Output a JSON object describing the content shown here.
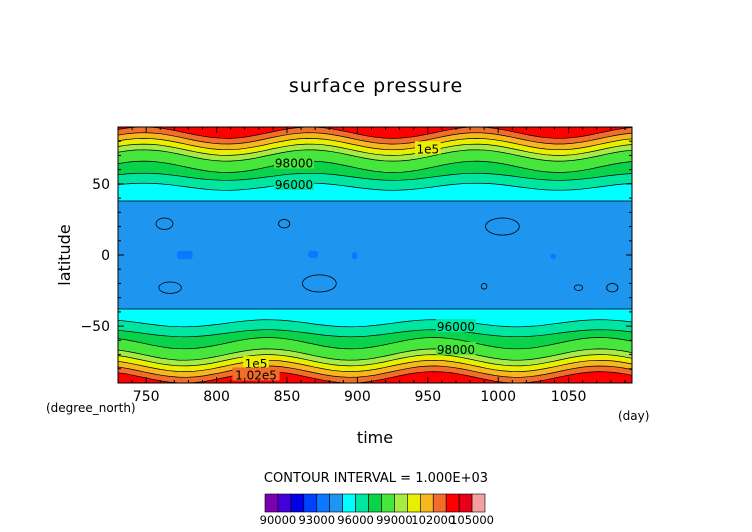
{
  "chart_data": {
    "type": "heatmap",
    "title": "surface pressure",
    "xlabel": "time",
    "ylabel": "latitude",
    "x_unit": "(day)",
    "y_unit": "(degree_north)",
    "xlim": [
      730,
      1095
    ],
    "ylim": [
      -90,
      90
    ],
    "x_ticks": [
      750,
      800,
      850,
      900,
      950,
      1000,
      1050
    ],
    "y_ticks": [
      -50,
      0,
      50
    ],
    "contour_interval_text": "CONTOUR INTERVAL = 1.000E+03",
    "contour_labels": [
      {
        "text": "1e5",
        "x": 950,
        "lat": 75
      },
      {
        "text": "98000",
        "x": 855,
        "lat": 65
      },
      {
        "text": "96000",
        "x": 855,
        "lat": 50
      },
      {
        "text": "96000",
        "x": 970,
        "lat": -50
      },
      {
        "text": "98000",
        "x": 970,
        "lat": -66
      },
      {
        "text": "1e5",
        "x": 828,
        "lat": -76
      },
      {
        "text": "1.02e5",
        "x": 828,
        "lat": -84
      }
    ],
    "colorbar": {
      "levels": [
        90000,
        91000,
        92000,
        93000,
        94000,
        95000,
        96000,
        97000,
        98000,
        99000,
        100000,
        101000,
        102000,
        103000,
        104000,
        105000
      ],
      "colors": [
        "#7a00b0",
        "#4400d8",
        "#0000e8",
        "#0040ff",
        "#0a78ff",
        "#1e96f0",
        "#00ffff",
        "#00e6a0",
        "#0ad24a",
        "#46e63c",
        "#a6ec46",
        "#e8f000",
        "#f7b71e",
        "#f06e2a",
        "#ff0000",
        "#e80018",
        "#f5a0a0"
      ],
      "tick_labels": [
        "90000",
        "93000",
        "96000",
        "99000",
        "102000",
        "105000"
      ]
    },
    "lat_bands": [
      {
        "lat": [
          -90,
          -86
        ],
        "value": 103500
      },
      {
        "lat": [
          -86,
          -82
        ],
        "value": 102500
      },
      {
        "lat": [
          -82,
          -78
        ],
        "value": 101500
      },
      {
        "lat": [
          -78,
          -74
        ],
        "value": 100500
      },
      {
        "lat": [
          -74,
          -70
        ],
        "value": 99500
      },
      {
        "lat": [
          -70,
          -62
        ],
        "value": 98500
      },
      {
        "lat": [
          -62,
          -55
        ],
        "value": 97500
      },
      {
        "lat": [
          -55,
          -48
        ],
        "value": 96500
      },
      {
        "lat": [
          -48,
          -38
        ],
        "value": 95500
      },
      {
        "lat": [
          -38,
          38
        ],
        "value": 94500
      },
      {
        "lat": [
          38,
          48
        ],
        "value": 95500
      },
      {
        "lat": [
          48,
          55
        ],
        "value": 96500
      },
      {
        "lat": [
          55,
          62
        ],
        "value": 97500
      },
      {
        "lat": [
          62,
          70
        ],
        "value": 98500
      },
      {
        "lat": [
          70,
          74
        ],
        "value": 99500
      },
      {
        "lat": [
          74,
          78
        ],
        "value": 100500
      },
      {
        "lat": [
          78,
          82
        ],
        "value": 101500
      },
      {
        "lat": [
          82,
          86
        ],
        "value": 102500
      },
      {
        "lat": [
          86,
          90
        ],
        "value": 103500
      }
    ],
    "low_pressure_patches": [
      {
        "x": [
          772,
          783
        ],
        "lat": [
          -3,
          3
        ],
        "value": 93500
      },
      {
        "x": [
          865,
          872
        ],
        "lat": [
          -2,
          3
        ],
        "value": 93500
      },
      {
        "x": [
          896,
          900
        ],
        "lat": [
          -3,
          2
        ],
        "value": 93500
      },
      {
        "x": [
          1037,
          1041
        ],
        "lat": [
          -3,
          1
        ],
        "value": 93500
      }
    ]
  }
}
